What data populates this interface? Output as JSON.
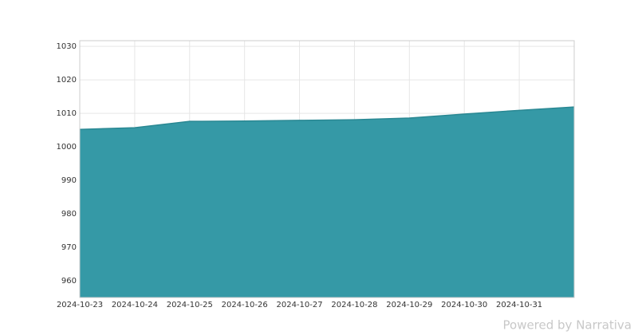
{
  "chart_data": {
    "type": "area",
    "x": [
      "2024-10-23",
      "2024-10-24",
      "2024-10-25",
      "2024-10-26",
      "2024-10-27",
      "2024-10-28",
      "2024-10-29",
      "2024-10-30",
      "2024-10-31",
      "2024-11-01"
    ],
    "values": [
      1005.2,
      1005.7,
      1007.6,
      1007.7,
      1007.9,
      1008.1,
      1008.6,
      1009.8,
      1010.9,
      1011.9
    ],
    "color": "#3599a6",
    "line_color": "#2a8893",
    "xlim": [
      "2024-10-23",
      "2024-11-01"
    ],
    "xticks": [
      "2024-10-23",
      "2024-10-24",
      "2024-10-25",
      "2024-10-26",
      "2024-10-27",
      "2024-10-28",
      "2024-10-29",
      "2024-10-30",
      "2024-10-31"
    ],
    "ylim": [
      955,
      1031.7
    ],
    "yticks": [
      960,
      970,
      980,
      990,
      1000,
      1010,
      1020,
      1030
    ],
    "grid": true,
    "watermark": "Powered by Narrativa"
  }
}
